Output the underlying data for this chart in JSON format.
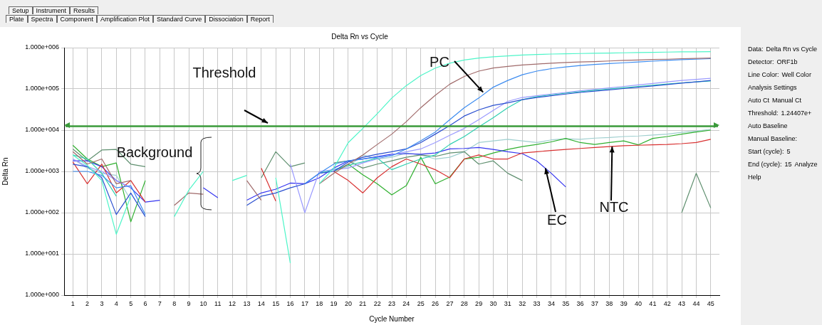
{
  "chart_data": [
    {
      "type": "line",
      "title": "Delta Rn vs Cycle",
      "xlabel": "Cycle Number",
      "ylabel": "Delta Rn",
      "log": "y",
      "grid": true,
      "legend": false,
      "xlim": [
        0.4,
        45.6
      ],
      "xticks": [
        1,
        2,
        3,
        4,
        5,
        6,
        7,
        8,
        9,
        10,
        11,
        12,
        13,
        14,
        15,
        16,
        17,
        18,
        19,
        20,
        21,
        22,
        23,
        24,
        25,
        26,
        27,
        28,
        29,
        30,
        31,
        32,
        33,
        34,
        35,
        36,
        37,
        38,
        39,
        40,
        41,
        42,
        43,
        44,
        45
      ],
      "ylim": [
        1,
        1000000
      ],
      "yticks": [
        {
          "value": 1,
          "label": "1.000e+000"
        },
        {
          "value": 10,
          "label": "1.000e+001"
        },
        {
          "value": 100,
          "label": "1.000e+002"
        },
        {
          "value": 1000,
          "label": "1.000e+003"
        },
        {
          "value": 10000,
          "label": "1.000e+004"
        },
        {
          "value": 100000,
          "label": "1.000e+005"
        },
        {
          "value": 1000000,
          "label": "1.000e+006"
        }
      ],
      "x": [
        1,
        2,
        3,
        4,
        5,
        6,
        7,
        8,
        9,
        10,
        11,
        12,
        13,
        14,
        15,
        16,
        17,
        18,
        19,
        20,
        21,
        22,
        23,
        24,
        25,
        26,
        27,
        28,
        29,
        30,
        31,
        32,
        33,
        34,
        35,
        36,
        37,
        38,
        39,
        40,
        41,
        42,
        43,
        44,
        45
      ],
      "series": [
        {
          "color": "#4df5c8",
          "values": [
            2500,
            1400,
            600,
            30,
            250,
            null,
            null,
            80,
            350,
            1000,
            null,
            600,
            800,
            null,
            700,
            6,
            null,
            500,
            1200,
            5000,
            11000,
            25000,
            60000,
            120000,
            210000,
            320000,
            420000,
            500000,
            560000,
            600000,
            630000,
            660000,
            680000,
            700000,
            710000,
            720000,
            730000,
            740000,
            750000,
            760000,
            770000,
            780000,
            790000,
            795000,
            800000
          ]
        },
        {
          "color": "#a06a6a",
          "values": [
            3000,
            1500,
            2000,
            500,
            600,
            null,
            null,
            150,
            300,
            280,
            null,
            null,
            600,
            200,
            null,
            null,
            null,
            500,
            900,
            1500,
            2500,
            4500,
            8000,
            16000,
            35000,
            70000,
            130000,
            200000,
            270000,
            320000,
            350000,
            380000,
            400000,
            420000,
            435000,
            450000,
            460000,
            475000,
            490000,
            500000,
            515000,
            525000,
            540000,
            550000,
            560000
          ]
        },
        {
          "color": "#3d8cf0",
          "values": [
            1000,
            1000,
            800,
            400,
            450,
            90,
            null,
            null,
            null,
            null,
            null,
            null,
            null,
            null,
            null,
            null,
            500,
            900,
            1500,
            1800,
            2000,
            2200,
            2400,
            3500,
            5500,
            9000,
            18000,
            35000,
            60000,
            110000,
            160000,
            220000,
            270000,
            310000,
            340000,
            370000,
            390000,
            410000,
            430000,
            450000,
            470000,
            490000,
            510000,
            525000,
            540000
          ]
        },
        {
          "color": "#2a4fd0",
          "values": [
            1500,
            1300,
            700,
            90,
            300,
            80,
            null,
            null,
            null,
            null,
            null,
            null,
            150,
            250,
            300,
            400,
            500,
            900,
            1000,
            1700,
            2200,
            2600,
            3000,
            3500,
            5000,
            8000,
            13000,
            22000,
            31000,
            40000,
            46000,
            55000,
            62000,
            68000,
            75000,
            82000,
            88000,
            95000,
            102000,
            110000,
            118000,
            128000,
            138000,
            148000,
            160000
          ]
        },
        {
          "color": "#9a9aff",
          "values": [
            2000,
            1300,
            1000,
            600,
            400,
            null,
            null,
            null,
            null,
            null,
            null,
            null,
            null,
            null,
            null,
            1500,
            100,
            1000,
            1100,
            1200,
            1600,
            2000,
            2500,
            3000,
            3500,
            5000,
            7500,
            11000,
            18000,
            30000,
            50000,
            62000,
            68000,
            75000,
            82000,
            90000,
            98000,
            106000,
            115000,
            125000,
            135000,
            148000,
            160000,
            170000,
            180000
          ]
        },
        {
          "color": "#2fd0b0",
          "values": [
            2500,
            2000,
            900,
            250,
            null,
            null,
            null,
            null,
            null,
            null,
            null,
            null,
            null,
            null,
            null,
            null,
            null,
            900,
            1100,
            1400,
            1700,
            2100,
            1100,
            1500,
            2000,
            2500,
            4500,
            7000,
            12000,
            20000,
            35000,
            55000,
            65000,
            72000,
            79000,
            86000,
            93000,
            100000,
            107000,
            115000,
            123000,
            131000,
            140000,
            148000,
            155000
          ]
        },
        {
          "color": "#d83030",
          "values": [
            1700,
            500,
            1500,
            300,
            600,
            180,
            null,
            null,
            null,
            null,
            null,
            null,
            null,
            1200,
            190,
            null,
            null,
            null,
            1000,
            600,
            300,
            700,
            1300,
            2000,
            1500,
            1100,
            700,
            2000,
            2500,
            2000,
            2000,
            2800,
            3000,
            3200,
            3400,
            3600,
            3800,
            4000,
            4200,
            4300,
            4400,
            4500,
            4700,
            5000,
            6000
          ]
        },
        {
          "color": "#3535f0",
          "values": [
            1800,
            1800,
            1300,
            600,
            400,
            180,
            200,
            null,
            null,
            400,
            230,
            null,
            200,
            300,
            370,
            520,
            500,
            700,
            1200,
            1800,
            2000,
            2300,
            2600,
            2700,
            2600,
            2800,
            3500,
            3600,
            3800,
            3400,
            3000,
            2700,
            1800,
            900,
            420,
            null,
            null,
            null,
            null,
            null,
            null,
            null,
            null,
            null,
            null
          ]
        },
        {
          "color": "#30b030",
          "values": [
            4300,
            2000,
            1300,
            1600,
            60,
            600,
            null,
            null,
            null,
            null,
            null,
            null,
            null,
            null,
            null,
            null,
            null,
            null,
            1000,
            1500,
            830,
            500,
            270,
            450,
            2200,
            500,
            730,
            2000,
            2200,
            2800,
            3400,
            4000,
            4500,
            5200,
            6300,
            5000,
            4500,
            5000,
            5500,
            4400,
            6300,
            7000,
            8000,
            9000,
            10000
          ]
        },
        {
          "color": "#5f8f6f",
          "values": [
            3500,
            1800,
            3300,
            3400,
            1500,
            1300,
            null,
            null,
            null,
            null,
            null,
            null,
            null,
            700,
            3000,
            1300,
            1600,
            null,
            1600,
            1800,
            1200,
            1500,
            1800,
            2200,
            2500,
            2300,
            2800,
            3000,
            1500,
            1800,
            900,
            600,
            null,
            null,
            null,
            null,
            null,
            null,
            null,
            null,
            null,
            null,
            100,
            900,
            130
          ]
        },
        {
          "color": "#9fcfcf",
          "values": [
            2000,
            1200,
            900,
            800,
            200,
            null,
            null,
            null,
            null,
            null,
            null,
            null,
            null,
            null,
            null,
            null,
            null,
            null,
            1100,
            1300,
            2500,
            2000,
            2200,
            2800,
            2500,
            2000,
            2200,
            3000,
            5000,
            5500,
            6000,
            5500,
            5000,
            5800,
            6200,
            6000,
            6400,
            6600,
            7000,
            7200,
            7600,
            8000,
            8800,
            9500,
            10500
          ]
        }
      ],
      "ref_lines": [
        {
          "axis": "y",
          "value": 12440.7,
          "color": "#3a9a3a"
        }
      ],
      "annotations": [
        "Threshold",
        "Background",
        {
          "text": "PC",
          "x": 29.3,
          "y": 83000
        },
        {
          "text": "EC",
          "x": 33.6,
          "y": 1200
        },
        {
          "text": "NTC",
          "x": 38.2,
          "y": 4000
        }
      ]
    },
    {
      "type": "other",
      "annotations": [
        "Setup",
        "Instrument",
        "Results"
      ]
    },
    {
      "type": "other",
      "annotations": [
        "Plate",
        "Spectra",
        "Component",
        "Amplification Plot",
        "Standard Curve",
        "Dissociation",
        "Report"
      ]
    },
    {
      "type": "other",
      "annotations": [
        "Data:",
        "Delta Rn vs Cycle",
        "Detector:",
        "ORF1b",
        "Line Color:",
        "Well Color",
        "Analysis Settings",
        "Auto Ct",
        "Manual Ct",
        "Threshold:",
        "1.24407e+",
        "Auto Baseline",
        "Manual Baseline:",
        "Start (cycle):",
        "5",
        "End (cycle):",
        "15",
        "Analyze",
        "Help"
      ]
    }
  ]
}
